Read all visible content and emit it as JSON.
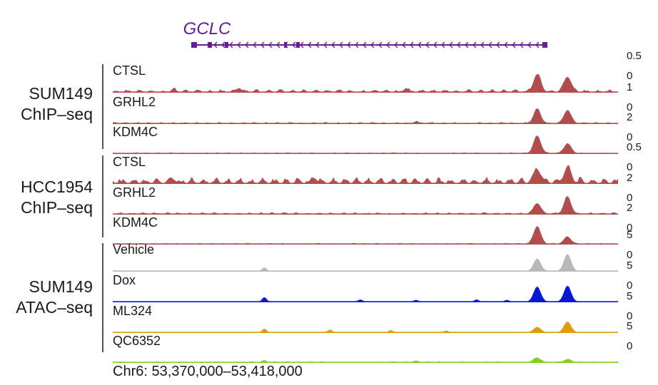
{
  "gene": {
    "name": "GCLC",
    "color": "#6a1b9a",
    "strand": "minus"
  },
  "coordinates": "Chr6: 53,370,000–53,418,000",
  "groups": [
    {
      "id": "sum149-chip",
      "label_lines": [
        "SUM149",
        "ChIP–seq"
      ]
    },
    {
      "id": "hcc1954-chip",
      "label_lines": [
        "HCC1954",
        "ChIP–seq"
      ]
    },
    {
      "id": "sum149-atac",
      "label_lines": [
        "SUM149",
        "ATAC–seq"
      ]
    }
  ],
  "tracks": [
    {
      "group": 0,
      "label": "CTSL",
      "color": "#b34d4d",
      "scale_max": "0.5",
      "scale_min": "0",
      "noise": 0.16,
      "smalls": [
        [
          0.25,
          0.22
        ],
        [
          0.58,
          0.18
        ],
        [
          0.12,
          0.12
        ]
      ],
      "peaks": [
        [
          0.84,
          1.0
        ],
        [
          0.9,
          0.85
        ]
      ]
    },
    {
      "group": 0,
      "label": "GRHL2",
      "color": "#b34d4d",
      "scale_max": "1",
      "scale_min": "0",
      "noise": 0.08,
      "smalls": [
        [
          0.6,
          0.1
        ]
      ],
      "peaks": [
        [
          0.84,
          0.8
        ],
        [
          0.9,
          0.75
        ]
      ]
    },
    {
      "group": 0,
      "label": "KDM4C",
      "color": "#b34d4d",
      "scale_max": "2",
      "scale_min": "0",
      "noise": 0.05,
      "smalls": [],
      "peaks": [
        [
          0.84,
          1.0
        ],
        [
          0.9,
          0.55
        ]
      ]
    },
    {
      "group": 1,
      "label": "CTSL",
      "color": "#b34d4d",
      "scale_max": "0.5",
      "scale_min": "0",
      "noise": 0.38,
      "smalls": [
        [
          0.4,
          0.25
        ],
        [
          0.12,
          0.2
        ]
      ],
      "peaks": [
        [
          0.84,
          0.75
        ],
        [
          0.9,
          0.8
        ]
      ]
    },
    {
      "group": 1,
      "label": "GRHL2",
      "color": "#b34d4d",
      "scale_max": "2",
      "scale_min": "0",
      "noise": 0.1,
      "smalls": [],
      "peaks": [
        [
          0.84,
          0.6
        ],
        [
          0.9,
          0.95
        ]
      ]
    },
    {
      "group": 1,
      "label": "KDM4C",
      "color": "#b34d4d",
      "scale_max": "2",
      "scale_min": "0",
      "noise": 0.05,
      "smalls": [],
      "peaks": [
        [
          0.84,
          1.0
        ],
        [
          0.9,
          0.4
        ]
      ]
    },
    {
      "group": 2,
      "label": "Vehicle",
      "color": "#b8b8b8",
      "scale_max": "5",
      "scale_min": "0",
      "noise": 0.0,
      "smalls": [
        [
          0.3,
          0.2
        ]
      ],
      "peaks": [
        [
          0.84,
          0.7
        ],
        [
          0.9,
          0.95
        ]
      ]
    },
    {
      "group": 2,
      "label": "Dox",
      "color": "#0a18d6",
      "scale_max": "5",
      "scale_min": "0",
      "noise": 0.0,
      "smalls": [
        [
          0.3,
          0.25
        ],
        [
          0.49,
          0.12
        ],
        [
          0.6,
          0.1
        ],
        [
          0.72,
          0.12
        ],
        [
          0.78,
          0.1
        ]
      ],
      "peaks": [
        [
          0.84,
          0.85
        ],
        [
          0.9,
          0.9
        ]
      ]
    },
    {
      "group": 2,
      "label": "ML324",
      "color": "#e39b0e",
      "scale_max": "5",
      "scale_min": "0",
      "noise": 0.0,
      "smalls": [
        [
          0.3,
          0.2
        ],
        [
          0.43,
          0.15
        ],
        [
          0.55,
          0.12
        ],
        [
          0.66,
          0.1
        ]
      ],
      "peaks": [
        [
          0.84,
          0.3
        ],
        [
          0.9,
          0.6
        ]
      ]
    },
    {
      "group": 2,
      "label": "QC6352",
      "color": "#7fd11b",
      "scale_max": "5",
      "scale_min": "0",
      "noise": 0.05,
      "smalls": [
        [
          0.3,
          0.1
        ],
        [
          0.6,
          0.08
        ]
      ],
      "peaks": [
        [
          0.84,
          0.25
        ],
        [
          0.9,
          0.15
        ]
      ]
    }
  ]
}
